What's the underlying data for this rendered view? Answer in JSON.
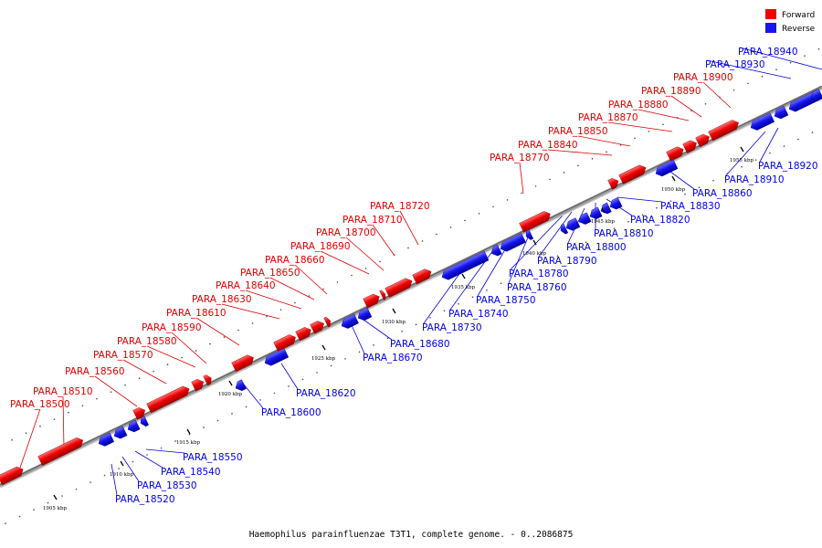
{
  "caption": "Haemophilus parainfluenzae T3T1, complete genome. - 0..2086875",
  "legend": {
    "forward": {
      "label": "Forward",
      "color": "#ee0000"
    },
    "reverse": {
      "label": "Reverse",
      "color": "#1515ee"
    }
  },
  "scale": {
    "ticks": [
      "1905 kbp",
      "1910 kbp",
      "1915 kbp",
      "1920 kbp",
      "1925 kbp",
      "1930 kbp",
      "1935 kbp",
      "1940 kbp",
      "1945 kbp",
      "1950 kbp",
      "1955 kbp"
    ]
  },
  "genes": [
    {
      "name": "PARA_18500",
      "strand": "+"
    },
    {
      "name": "PARA_18510",
      "strand": "+"
    },
    {
      "name": "PARA_18520",
      "strand": "-"
    },
    {
      "name": "PARA_18530",
      "strand": "-"
    },
    {
      "name": "PARA_18540",
      "strand": "-"
    },
    {
      "name": "PARA_18550",
      "strand": "-"
    },
    {
      "name": "PARA_18560",
      "strand": "+"
    },
    {
      "name": "PARA_18570",
      "strand": "+"
    },
    {
      "name": "PARA_18580",
      "strand": "+"
    },
    {
      "name": "PARA_18590",
      "strand": "+"
    },
    {
      "name": "PARA_18600",
      "strand": "-"
    },
    {
      "name": "PARA_18610",
      "strand": "+"
    },
    {
      "name": "PARA_18620",
      "strand": "-"
    },
    {
      "name": "PARA_18630",
      "strand": "+"
    },
    {
      "name": "PARA_18640",
      "strand": "+"
    },
    {
      "name": "PARA_18650",
      "strand": "+"
    },
    {
      "name": "PARA_18660",
      "strand": "+"
    },
    {
      "name": "PARA_18670",
      "strand": "-"
    },
    {
      "name": "PARA_18680",
      "strand": "-"
    },
    {
      "name": "PARA_18690",
      "strand": "+"
    },
    {
      "name": "PARA_18700",
      "strand": "+"
    },
    {
      "name": "PARA_18710",
      "strand": "+"
    },
    {
      "name": "PARA_18720",
      "strand": "+"
    },
    {
      "name": "PARA_18730",
      "strand": "-"
    },
    {
      "name": "PARA_18740",
      "strand": "-"
    },
    {
      "name": "PARA_18750",
      "strand": "-"
    },
    {
      "name": "PARA_18760",
      "strand": "-"
    },
    {
      "name": "PARA_18770",
      "strand": "+"
    },
    {
      "name": "PARA_18780",
      "strand": "-"
    },
    {
      "name": "PARA_18790",
      "strand": "-"
    },
    {
      "name": "PARA_18800",
      "strand": "-"
    },
    {
      "name": "PARA_18810",
      "strand": "-"
    },
    {
      "name": "PARA_18820",
      "strand": "-"
    },
    {
      "name": "PARA_18830",
      "strand": "-"
    },
    {
      "name": "PARA_18840",
      "strand": "+"
    },
    {
      "name": "PARA_18850",
      "strand": "+"
    },
    {
      "name": "PARA_18860",
      "strand": "-"
    },
    {
      "name": "PARA_18870",
      "strand": "+"
    },
    {
      "name": "PARA_18880",
      "strand": "+"
    },
    {
      "name": "PARA_18890",
      "strand": "+"
    },
    {
      "name": "PARA_18900",
      "strand": "+"
    },
    {
      "name": "PARA_18910",
      "strand": "-"
    },
    {
      "name": "PARA_18920",
      "strand": "-"
    },
    {
      "name": "PARA_18930",
      "strand": "-"
    },
    {
      "name": "PARA_18940",
      "strand": "-"
    }
  ]
}
